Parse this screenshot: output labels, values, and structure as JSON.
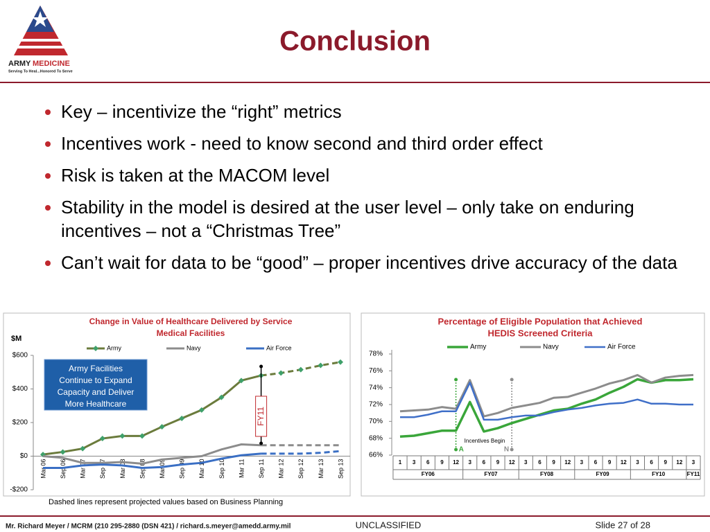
{
  "logo": {
    "word1": "ARMY",
    "word2": "MEDICINE",
    "motto": "Serving To Heal...Honored To Serve"
  },
  "header": {
    "title": "Conclusion"
  },
  "bullets": [
    "Key – incentivize the “right” metrics",
    "Incentives work - need to know second and third order effect",
    "Risk is taken at the MACOM level",
    "Stability in the model is desired at the user level – only take on enduring incentives – not a “Christmas Tree”",
    "Can’t wait for data to be “good” – proper incentives drive accuracy of the data"
  ],
  "chart_data": [
    {
      "type": "line",
      "title": [
        "Change in Value of Healthcare Delivered by Service",
        "Medical Facilities"
      ],
      "y_label": "$M",
      "categories": [
        "Mar 06",
        "Sep 06",
        "Mar 07",
        "Sep 07",
        "Mar 08",
        "Sep 08",
        "Mar 09",
        "Sep 09",
        "Mar 10",
        "Sep 10",
        "Mar 11",
        "Sep 11",
        "Mar 12",
        "Sep 12",
        "Mar 13",
        "Sep 13"
      ],
      "projected_from": "Sep 11",
      "series": [
        {
          "name": "Army",
          "color": "#6b7b3c",
          "marker_color": "#3fa06a",
          "values": [
            10,
            25,
            45,
            105,
            120,
            120,
            175,
            225,
            275,
            350,
            450,
            480,
            495,
            515,
            540,
            560
          ]
        },
        {
          "name": "Navy",
          "color": "#8c8c8c",
          "values": [
            0,
            -10,
            -40,
            -40,
            -35,
            -45,
            -20,
            -10,
            0,
            40,
            70,
            65,
            65,
            65,
            65,
            65
          ]
        },
        {
          "name": "Air Force",
          "color": "#3a6fc4",
          "values": [
            -70,
            -70,
            -55,
            -50,
            -55,
            -70,
            -65,
            -50,
            -40,
            -15,
            5,
            15,
            15,
            15,
            20,
            30
          ]
        }
      ],
      "ylim": [
        -200,
        600
      ],
      "yticks": [
        {
          "value": -200,
          "label": "-$200"
        },
        {
          "value": 0,
          "label": "$0"
        },
        {
          "value": 200,
          "label": "$200"
        },
        {
          "value": 400,
          "label": "$400"
        },
        {
          "value": 600,
          "label": "$600"
        }
      ],
      "grid": false,
      "annotation": [
        "Army Facilities",
        "Continue to Expand",
        "Capacity and Deliver",
        "More  Healthcare"
      ],
      "marker_label": "FY11",
      "note": "Dashed lines represent projected values based on Business Planning"
    },
    {
      "type": "line",
      "title": [
        "Percentage of Eligible Population that Achieved",
        "HEDIS Screened Criteria"
      ],
      "category_groups": [
        {
          "label": "FY06",
          "categories": [
            "1",
            "3",
            "6",
            "9",
            "12"
          ]
        },
        {
          "label": "FY07",
          "categories": [
            "3",
            "6",
            "9",
            "12"
          ]
        },
        {
          "label": "FY08",
          "categories": [
            "3",
            "6",
            "9",
            "12"
          ]
        },
        {
          "label": "FY09",
          "categories": [
            "3",
            "6",
            "9",
            "12"
          ]
        },
        {
          "label": "FY10",
          "categories": [
            "3",
            "6",
            "9",
            "12"
          ]
        },
        {
          "label": "FY11",
          "categories": [
            "3"
          ]
        }
      ],
      "series": [
        {
          "name": "Army",
          "color": "#3aa63a",
          "values": [
            68.2,
            68.3,
            68.6,
            68.9,
            68.9,
            72.3,
            68.8,
            69.2,
            69.8,
            70.3,
            70.8,
            71.3,
            71.5,
            72.1,
            72.6,
            73.4,
            74.1,
            75.0,
            74.6,
            74.9,
            74.9,
            75.0
          ]
        },
        {
          "name": "Navy",
          "color": "#8c8c8c",
          "values": [
            71.2,
            71.3,
            71.4,
            71.7,
            71.5,
            74.9,
            70.6,
            71.0,
            71.6,
            71.9,
            72.2,
            72.8,
            72.9,
            73.4,
            73.9,
            74.5,
            74.9,
            75.5,
            74.6,
            75.2,
            75.4,
            75.5
          ]
        },
        {
          "name": "Air Force",
          "color": "#3f6fc8",
          "values": [
            70.5,
            70.5,
            70.8,
            71.2,
            71.2,
            74.6,
            70.2,
            70.2,
            70.5,
            70.7,
            70.7,
            71.1,
            71.4,
            71.6,
            71.9,
            72.1,
            72.2,
            72.6,
            72.1,
            72.1,
            72.0,
            72.0
          ]
        }
      ],
      "ylim": [
        66,
        78
      ],
      "yticks": [
        {
          "value": 66,
          "label": "66%"
        },
        {
          "value": 68,
          "label": "68%"
        },
        {
          "value": 70,
          "label": "70%"
        },
        {
          "value": 72,
          "label": "72%"
        },
        {
          "value": 74,
          "label": "74%"
        },
        {
          "value": 76,
          "label": "76%"
        },
        {
          "value": 78,
          "label": "78%"
        }
      ],
      "grid": false,
      "annotation": "Incentives Begin",
      "markers": [
        "A",
        "N"
      ]
    }
  ],
  "footer": {
    "author": "Mr. Richard Meyer / MCRM (210 295-2880 (DSN 421) / richard.s.meyer@amedd.army.mil",
    "classification": "UNCLASSIFIED",
    "slide": "Slide 27 of 28"
  }
}
